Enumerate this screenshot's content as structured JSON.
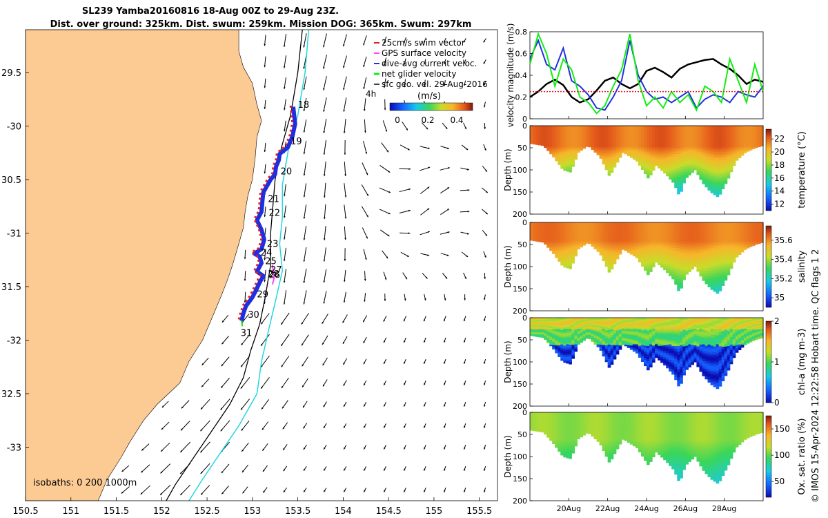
{
  "title": {
    "line1": "SL239 Yamba20160816 18-Aug 00Z to 29-Aug 23Z.",
    "line2": "Dist. over ground: 325km. Dist. swum: 259km. Mission DOG: 365km. Swum: 297km"
  },
  "footer": "© IMOS 15-Apr-2024 12:22:58 Hobart time. QC flags 1  2",
  "colors": {
    "land": "#fccb94",
    "sea": "#ffffff",
    "isobath_shelf": "#000000",
    "isobath_deep": "#22d6e0",
    "track_dive": "#1f2fe0",
    "swim_vector": "#e0201f",
    "gps": "#ff44ff",
    "net_velocity": "#11ee11",
    "geo_velocity": "#000000"
  },
  "chart_data": [
    {
      "type": "map",
      "name": "glider-track-map",
      "xlim": [
        150.5,
        155.7
      ],
      "ylim": [
        -33.5,
        -29.1
      ],
      "xticks": [
        150.5,
        151,
        151.5,
        152,
        152.5,
        153,
        153.5,
        154,
        154.5,
        155,
        155.5
      ],
      "yticks": [
        -29.5,
        -30,
        -30.5,
        -31,
        -31.5,
        -32,
        -32.5,
        -33
      ],
      "xtick_labels": [
        "150.5",
        "151",
        "151.5",
        "152",
        "152.5",
        "153",
        "153.5",
        "154",
        "154.5",
        "155",
        "155.5"
      ],
      "ytick_labels": [
        "29.5",
        "-30",
        "30.5",
        "-31",
        "31.5",
        "-32",
        "32.5",
        "-33"
      ],
      "legend": {
        "placement": "top-right",
        "entries": [
          "25cm/s swim vector",
          "GPS surface velocity",
          "dive-avg current veloc.",
          "net glider velocity",
          "sfc geo. vel. 29-Aug-2016"
        ]
      },
      "colorbar": {
        "label": "(m/s)",
        "ticks": [
          "0",
          "0.2",
          "0.4"
        ],
        "range": [
          0,
          0.5
        ],
        "note": "4h"
      },
      "isobaths_label": "isobaths: 0   200  1000m",
      "day_labels": [
        {
          "text": "18",
          "lon": 153.5,
          "lat": -29.83
        },
        {
          "text": "19",
          "lon": 153.42,
          "lat": -30.17
        },
        {
          "text": "20",
          "lon": 153.31,
          "lat": -30.45
        },
        {
          "text": "21",
          "lon": 153.17,
          "lat": -30.71
        },
        {
          "text": "22",
          "lon": 153.18,
          "lat": -30.84
        },
        {
          "text": "23",
          "lon": 153.16,
          "lat": -31.13
        },
        {
          "text": "24",
          "lon": 153.09,
          "lat": -31.21
        },
        {
          "text": "25",
          "lon": 153.14,
          "lat": -31.29
        },
        {
          "text": "27",
          "lon": 153.2,
          "lat": -31.37
        },
        {
          "text": "26",
          "lon": 153.18,
          "lat": -31.42
        },
        {
          "text": "28",
          "lon": 153.17,
          "lat": -31.41
        },
        {
          "text": "29",
          "lon": 153.05,
          "lat": -31.6
        },
        {
          "text": "30",
          "lon": 152.95,
          "lat": -31.79
        },
        {
          "text": "31",
          "lon": 152.87,
          "lat": -31.96
        }
      ],
      "track": [
        [
          153.45,
          -29.82
        ],
        [
          153.47,
          -29.98
        ],
        [
          153.44,
          -30.1
        ],
        [
          153.39,
          -30.2
        ],
        [
          153.3,
          -30.26
        ],
        [
          153.29,
          -30.32
        ],
        [
          153.26,
          -30.38
        ],
        [
          153.25,
          -30.45
        ],
        [
          153.2,
          -30.5
        ],
        [
          153.12,
          -30.62
        ],
        [
          153.11,
          -30.7
        ],
        [
          153.1,
          -30.8
        ],
        [
          153.05,
          -30.88
        ],
        [
          153.1,
          -30.97
        ],
        [
          153.13,
          -31.06
        ],
        [
          153.1,
          -31.15
        ],
        [
          153.02,
          -31.19
        ],
        [
          153.08,
          -31.22
        ],
        [
          153.1,
          -31.28
        ],
        [
          153.05,
          -31.36
        ],
        [
          153.12,
          -31.4
        ],
        [
          153.08,
          -31.46
        ],
        [
          153.03,
          -31.55
        ],
        [
          153.0,
          -31.6
        ],
        [
          152.93,
          -31.68
        ],
        [
          152.9,
          -31.75
        ],
        [
          152.88,
          -31.82
        ]
      ]
    },
    {
      "type": "line",
      "name": "velocity-magnitude",
      "ylabel": "velocity magnitude (m/s)",
      "ylim": [
        0,
        0.8
      ],
      "yticks": [
        "0",
        "0.2",
        "0.4",
        "0.6",
        "0.8"
      ],
      "xlim": [
        0,
        12
      ],
      "x_unit": "days since 18-Aug 00Z",
      "series": [
        {
          "color": "#000000",
          "values": [
            0.2,
            0.25,
            0.32,
            0.36,
            0.31,
            0.2,
            0.15,
            0.18,
            0.26,
            0.35,
            0.38,
            0.32,
            0.28,
            0.32,
            0.44,
            0.47,
            0.43,
            0.38,
            0.46,
            0.5,
            0.52,
            0.54,
            0.55,
            0.5,
            0.46,
            0.4,
            0.32,
            0.36,
            0.34
          ]
        },
        {
          "color": "#1f2fe0",
          "values": [
            0.55,
            0.72,
            0.5,
            0.45,
            0.65,
            0.35,
            0.3,
            0.22,
            0.1,
            0.08,
            0.2,
            0.35,
            0.72,
            0.4,
            0.25,
            0.18,
            0.2,
            0.15,
            0.2,
            0.25,
            0.1,
            0.18,
            0.22,
            0.2,
            0.15,
            0.25,
            0.22,
            0.2,
            0.3
          ]
        },
        {
          "color": "#11ee11",
          "values": [
            0.5,
            0.78,
            0.6,
            0.3,
            0.55,
            0.45,
            0.2,
            0.15,
            0.05,
            0.12,
            0.3,
            0.45,
            0.78,
            0.35,
            0.12,
            0.2,
            0.1,
            0.25,
            0.15,
            0.22,
            0.08,
            0.3,
            0.25,
            0.15,
            0.55,
            0.35,
            0.15,
            0.5,
            0.25
          ]
        },
        {
          "color": "#e0201f",
          "values": [
            0.25,
            0.25,
            0.25,
            0.25,
            0.25,
            0.25,
            0.25,
            0.25,
            0.25,
            0.25,
            0.25,
            0.25,
            0.25,
            0.25,
            0.25,
            0.25,
            0.25,
            0.25,
            0.25,
            0.25,
            0.25,
            0.25,
            0.25,
            0.25,
            0.25,
            0.25,
            0.25,
            0.25,
            0.25
          ]
        }
      ]
    },
    {
      "type": "heatmap",
      "name": "temperature-section",
      "ylabel": "Depth (m)",
      "ylim": [
        200,
        0
      ],
      "yticks": [
        "0",
        "50",
        "100",
        "150",
        "200"
      ],
      "colorbar_label": "temperature (°C)",
      "colorbar_ticks": [
        "12",
        "14",
        "16",
        "18",
        "20",
        "22"
      ],
      "colorbar_range": [
        11,
        23.5
      ],
      "surface_value": 21.5,
      "deep_value": 17.5
    },
    {
      "type": "heatmap",
      "name": "salinity-section",
      "ylabel": "Depth (m)",
      "ylim": [
        200,
        0
      ],
      "yticks": [
        "0",
        "50",
        "100",
        "150",
        "200"
      ],
      "colorbar_label": "salinity",
      "colorbar_ticks": [
        "35",
        "35.2",
        "35.4",
        "35.6"
      ],
      "colorbar_range": [
        34.9,
        35.75
      ],
      "surface_value": 35.58,
      "deep_value": 35.3
    },
    {
      "type": "heatmap",
      "name": "chlorophyll-section",
      "ylabel": "Depth (m)",
      "ylim": [
        200,
        0
      ],
      "yticks": [
        "0",
        "50",
        "100",
        "150",
        "200"
      ],
      "colorbar_label": "chl-a (mg m-3)",
      "colorbar_ticks": [
        "0",
        "1",
        "2"
      ],
      "colorbar_range": [
        0,
        2
      ],
      "surface_value": 1.2,
      "deep_value": 0.1
    },
    {
      "type": "heatmap",
      "name": "oxygen-section",
      "ylabel": "Depth (m)",
      "ylim": [
        200,
        0
      ],
      "yticks": [
        "0",
        "50",
        "100",
        "150",
        "200"
      ],
      "xtick_labels": [
        "20Aug",
        "22Aug",
        "24Aug",
        "26Aug",
        "28Aug"
      ],
      "xticks_days": [
        2,
        4,
        6,
        8,
        10
      ],
      "colorbar_label": "Ox. sat. ratio (%)",
      "colorbar_ticks": [
        "50",
        "100",
        "150"
      ],
      "colorbar_range": [
        20,
        175
      ],
      "surface_value": 110,
      "deep_value": 85
    }
  ]
}
